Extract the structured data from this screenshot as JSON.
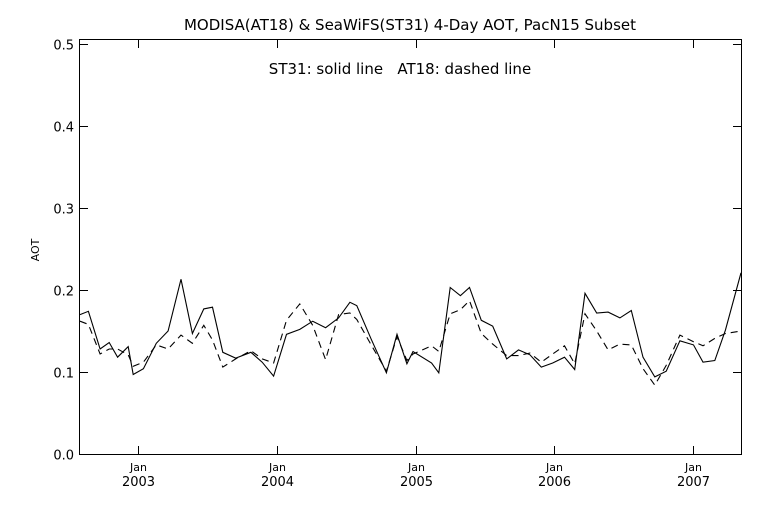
{
  "chart_data": {
    "type": "line",
    "title": "MODISA(AT18) & SeaWiFS(ST31) 4-Day AOT, PacN15 Subset",
    "annotation": "ST31: solid line   AT18: dashed line",
    "ylabel": "AOT",
    "xlabel": "",
    "ylim": [
      0.0,
      0.5
    ],
    "xlim": [
      "2002-08-01",
      "2007-05-08"
    ],
    "y_ticks": [
      "0.0",
      "0.1",
      "0.2",
      "0.3",
      "0.4",
      "0.5"
    ],
    "x_ticks": [
      {
        "date": "2003-01-01",
        "month": "Jan",
        "year": "2003"
      },
      {
        "date": "2004-01-01",
        "month": "Jan",
        "year": "2004"
      },
      {
        "date": "2005-01-01",
        "month": "Jan",
        "year": "2005"
      },
      {
        "date": "2006-01-01",
        "month": "Jan",
        "year": "2006"
      },
      {
        "date": "2007-01-01",
        "month": "Jan",
        "year": "2007"
      }
    ],
    "grid": false,
    "series": [
      {
        "name": "ST31",
        "style": "solid",
        "points": [
          [
            "2002-08-01",
            0.17
          ],
          [
            "2002-08-23",
            0.174
          ],
          [
            "2002-09-23",
            0.128
          ],
          [
            "2002-10-17",
            0.136
          ],
          [
            "2002-11-08",
            0.118
          ],
          [
            "2002-12-06",
            0.131
          ],
          [
            "2002-12-19",
            0.097
          ],
          [
            "2003-01-15",
            0.104
          ],
          [
            "2003-02-18",
            0.135
          ],
          [
            "2003-03-21",
            0.15
          ],
          [
            "2003-04-24",
            0.213
          ],
          [
            "2003-05-24",
            0.147
          ],
          [
            "2003-06-23",
            0.177
          ],
          [
            "2003-07-16",
            0.179
          ],
          [
            "2003-08-12",
            0.124
          ],
          [
            "2003-09-15",
            0.117
          ],
          [
            "2003-10-25",
            0.124
          ],
          [
            "2003-11-24",
            0.112
          ],
          [
            "2003-12-24",
            0.095
          ],
          [
            "2004-01-27",
            0.146
          ],
          [
            "2004-03-02",
            0.152
          ],
          [
            "2004-04-05",
            0.162
          ],
          [
            "2004-05-09",
            0.154
          ],
          [
            "2004-06-12",
            0.166
          ],
          [
            "2004-07-12",
            0.185
          ],
          [
            "2004-07-30",
            0.181
          ],
          [
            "2004-09-06",
            0.14
          ],
          [
            "2004-10-16",
            0.099
          ],
          [
            "2004-11-13",
            0.146
          ],
          [
            "2004-12-09",
            0.11
          ],
          [
            "2004-12-25",
            0.125
          ],
          [
            "2005-02-12",
            0.111
          ],
          [
            "2005-03-03",
            0.099
          ],
          [
            "2005-04-02",
            0.203
          ],
          [
            "2005-04-29",
            0.193
          ],
          [
            "2005-05-23",
            0.203
          ],
          [
            "2005-06-23",
            0.163
          ],
          [
            "2005-07-23",
            0.156
          ],
          [
            "2005-08-29",
            0.116
          ],
          [
            "2005-09-29",
            0.127
          ],
          [
            "2005-10-29",
            0.121
          ],
          [
            "2005-11-28",
            0.106
          ],
          [
            "2005-12-28",
            0.111
          ],
          [
            "2006-01-28",
            0.118
          ],
          [
            "2006-02-24",
            0.103
          ],
          [
            "2006-03-23",
            0.196
          ],
          [
            "2006-04-23",
            0.172
          ],
          [
            "2006-05-23",
            0.173
          ],
          [
            "2006-06-23",
            0.166
          ],
          [
            "2006-07-23",
            0.175
          ],
          [
            "2006-08-23",
            0.118
          ],
          [
            "2006-09-23",
            0.094
          ],
          [
            "2006-10-23",
            0.101
          ],
          [
            "2006-11-28",
            0.138
          ],
          [
            "2007-01-03",
            0.133
          ],
          [
            "2007-01-28",
            0.112
          ],
          [
            "2007-02-28",
            0.114
          ],
          [
            "2007-03-28",
            0.151
          ],
          [
            "2007-05-08",
            0.221
          ]
        ]
      },
      {
        "name": "AT18",
        "style": "dashed",
        "points": [
          [
            "2002-08-01",
            0.162
          ],
          [
            "2002-08-23",
            0.158
          ],
          [
            "2002-09-23",
            0.122
          ],
          [
            "2002-10-17",
            0.128
          ],
          [
            "2002-11-08",
            0.128
          ],
          [
            "2002-12-06",
            0.121
          ],
          [
            "2002-12-19",
            0.107
          ],
          [
            "2003-01-15",
            0.112
          ],
          [
            "2003-02-18",
            0.133
          ],
          [
            "2003-03-21",
            0.128
          ],
          [
            "2003-04-24",
            0.145
          ],
          [
            "2003-05-24",
            0.135
          ],
          [
            "2003-06-23",
            0.157
          ],
          [
            "2003-07-16",
            0.139
          ],
          [
            "2003-08-12",
            0.106
          ],
          [
            "2003-09-15",
            0.116
          ],
          [
            "2003-10-25",
            0.126
          ],
          [
            "2003-11-24",
            0.116
          ],
          [
            "2003-12-24",
            0.111
          ],
          [
            "2004-01-27",
            0.163
          ],
          [
            "2004-03-02",
            0.183
          ],
          [
            "2004-04-05",
            0.157
          ],
          [
            "2004-05-09",
            0.115
          ],
          [
            "2004-06-12",
            0.17
          ],
          [
            "2004-07-12",
            0.172
          ],
          [
            "2004-07-30",
            0.164
          ],
          [
            "2004-09-06",
            0.133
          ],
          [
            "2004-10-16",
            0.101
          ],
          [
            "2004-11-13",
            0.143
          ],
          [
            "2004-12-09",
            0.114
          ],
          [
            "2004-12-25",
            0.122
          ],
          [
            "2005-02-12",
            0.132
          ],
          [
            "2005-03-03",
            0.125
          ],
          [
            "2005-04-02",
            0.171
          ],
          [
            "2005-04-29",
            0.176
          ],
          [
            "2005-05-23",
            0.187
          ],
          [
            "2005-06-23",
            0.147
          ],
          [
            "2005-07-23",
            0.134
          ],
          [
            "2005-08-29",
            0.12
          ],
          [
            "2005-09-29",
            0.12
          ],
          [
            "2005-10-29",
            0.123
          ],
          [
            "2005-11-28",
            0.112
          ],
          [
            "2005-12-28",
            0.122
          ],
          [
            "2006-01-28",
            0.132
          ],
          [
            "2006-02-24",
            0.11
          ],
          [
            "2006-03-23",
            0.171
          ],
          [
            "2006-04-23",
            0.15
          ],
          [
            "2006-05-23",
            0.127
          ],
          [
            "2006-06-23",
            0.134
          ],
          [
            "2006-07-23",
            0.133
          ],
          [
            "2006-08-23",
            0.104
          ],
          [
            "2006-09-23",
            0.084
          ],
          [
            "2006-10-23",
            0.108
          ],
          [
            "2006-11-28",
            0.145
          ],
          [
            "2007-01-03",
            0.137
          ],
          [
            "2007-01-28",
            0.132
          ],
          [
            "2007-02-28",
            0.141
          ],
          [
            "2007-03-28",
            0.147
          ],
          [
            "2007-05-08",
            0.15
          ]
        ]
      }
    ]
  }
}
